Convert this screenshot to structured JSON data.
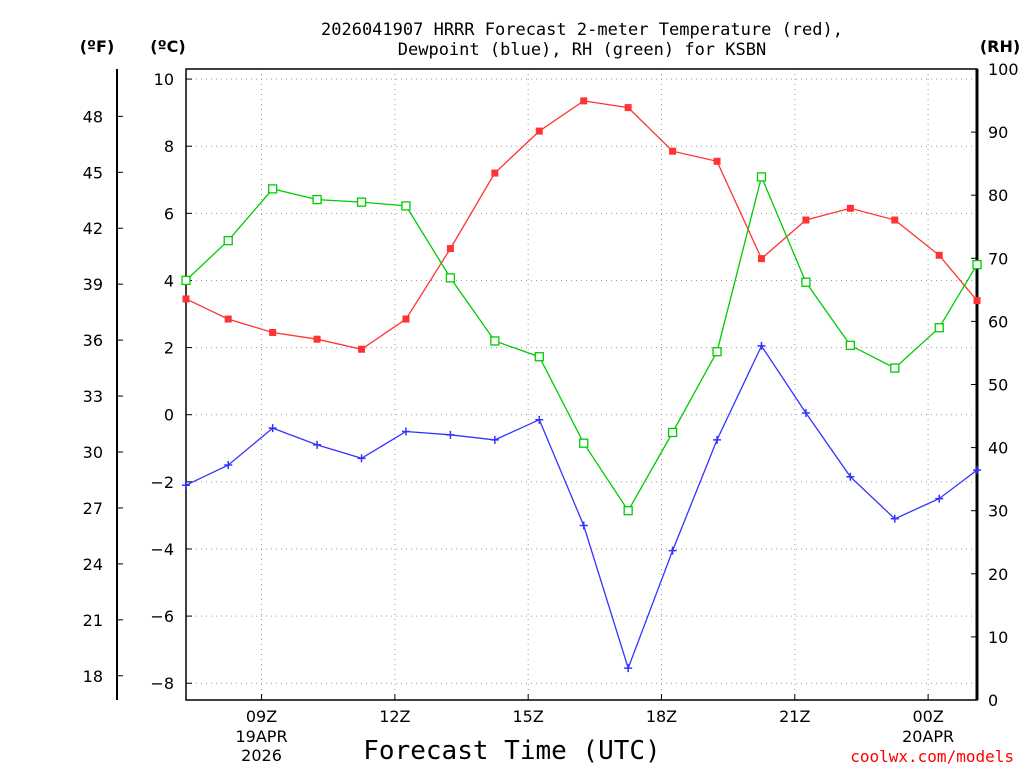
{
  "chart_data": {
    "type": "line",
    "title_lines": [
      "2026041907 HRRR Forecast 2-meter Temperature (red),",
      "Dewpoint (blue), RH (green) for KSBN"
    ],
    "xlabel": "Forecast Time (UTC)",
    "credit": "coolwx.com/models",
    "x_range": [
      7.3,
      25.1
    ],
    "x": [
      7.3,
      8.25,
      9.25,
      10.25,
      11.25,
      12.25,
      13.25,
      14.25,
      15.25,
      16.25,
      17.25,
      18.25,
      19.25,
      20.25,
      21.25,
      22.25,
      23.25,
      24.25,
      25.1
    ],
    "x_ticks": [
      {
        "x": 9,
        "label": "09Z",
        "sub": [
          "19APR",
          "2026"
        ]
      },
      {
        "x": 12,
        "label": "12Z",
        "sub": []
      },
      {
        "x": 15,
        "label": "15Z",
        "sub": []
      },
      {
        "x": 18,
        "label": "18Z",
        "sub": []
      },
      {
        "x": 21,
        "label": "21Z",
        "sub": []
      },
      {
        "x": 24,
        "label": "00Z",
        "sub": [
          "20APR"
        ]
      }
    ],
    "axes": {
      "celsius": {
        "unit": "(ºC)",
        "range": [
          -8.5,
          10.3
        ],
        "ticks": [
          "10",
          "8",
          "6",
          "4",
          "2",
          "0",
          "−2",
          "−4",
          "−6",
          "−8"
        ]
      },
      "fahrenheit": {
        "unit": "(ºF)",
        "ticks": [
          "48",
          "45",
          "42",
          "39",
          "36",
          "33",
          "30",
          "27",
          "24",
          "21",
          "18"
        ]
      },
      "rh": {
        "unit": "(RH)",
        "range": [
          0,
          100
        ],
        "ticks": [
          "100",
          "90",
          "80",
          "70",
          "60",
          "50",
          "40",
          "30",
          "20",
          "10",
          "0"
        ]
      }
    },
    "series": [
      {
        "name": "Temperature",
        "axis": "celsius",
        "color": "#ff3333",
        "marker": "filled-square",
        "values": [
          3.45,
          2.85,
          2.45,
          2.25,
          1.95,
          2.85,
          4.95,
          7.2,
          8.45,
          9.35,
          9.15,
          7.85,
          7.55,
          4.65,
          5.8,
          6.15,
          5.8,
          4.75,
          3.4
        ]
      },
      {
        "name": "Dewpoint",
        "axis": "celsius",
        "color": "#3333ff",
        "marker": "plus",
        "values": [
          -2.1,
          -1.5,
          -0.4,
          -0.9,
          -1.3,
          -0.5,
          -0.6,
          -0.75,
          -0.15,
          -3.3,
          -7.55,
          -4.05,
          -0.75,
          2.05,
          0.05,
          -1.85,
          -3.1,
          -2.5,
          -1.65
        ]
      },
      {
        "name": "RH",
        "axis": "rh",
        "color": "#00cc00",
        "marker": "open-square",
        "values": [
          66.5,
          72.8,
          81.0,
          79.3,
          78.9,
          78.3,
          66.9,
          56.9,
          54.4,
          40.7,
          30.0,
          42.4,
          55.2,
          82.9,
          66.2,
          56.2,
          52.6,
          59.0,
          69.0
        ]
      }
    ]
  }
}
